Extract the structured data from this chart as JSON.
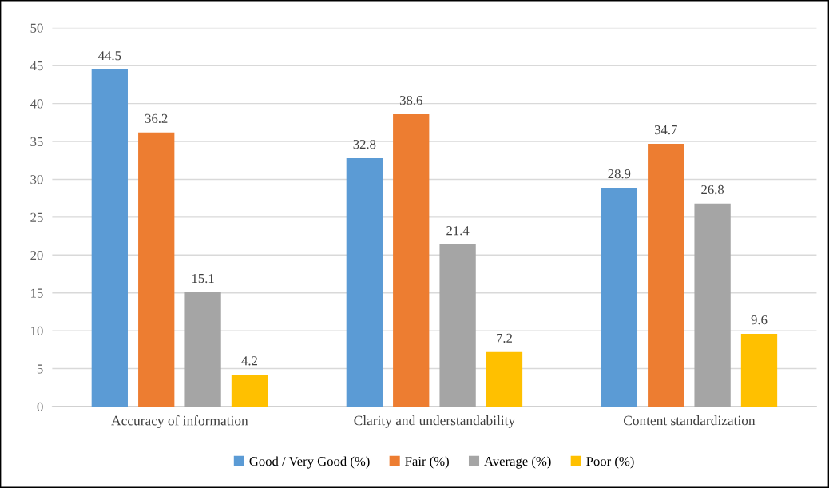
{
  "chart_data": {
    "type": "bar",
    "categories": [
      "Accuracy of information",
      "Clarity and understandability",
      "Content standardization"
    ],
    "series": [
      {
        "name": "Good / Very Good (%)",
        "color": "#5b9bd5",
        "values": [
          44.5,
          32.8,
          28.9
        ]
      },
      {
        "name": "Fair (%)",
        "color": "#ed7d31",
        "values": [
          36.2,
          38.6,
          34.7
        ]
      },
      {
        "name": "Average (%)",
        "color": "#a5a5a5",
        "values": [
          15.1,
          21.4,
          26.8
        ]
      },
      {
        "name": "Poor (%)",
        "color": "#ffc000",
        "values": [
          4.2,
          7.2,
          9.6
        ]
      }
    ],
    "ylim": [
      0,
      50
    ],
    "yticks": [
      0,
      5,
      10,
      15,
      20,
      25,
      30,
      35,
      40,
      45,
      50
    ],
    "grid": "y",
    "legend": "bottom",
    "data_labels": true
  }
}
